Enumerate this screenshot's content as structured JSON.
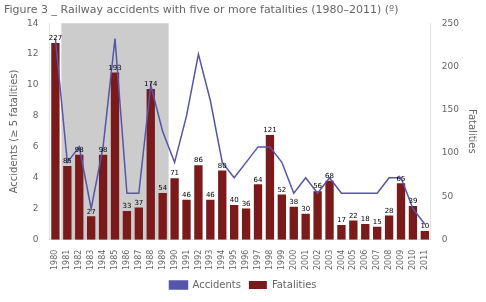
{
  "chart_data": {
    "type": "bar",
    "title": "Figure 3 _ Railway accidents with five or more fatalities (1980–2011) (º)",
    "categories": [
      "1980",
      "1981",
      "1982",
      "1983",
      "1984",
      "1985",
      "1986",
      "1987",
      "1988",
      "1989",
      "1990",
      "1991",
      "1992",
      "1993",
      "1994",
      "1995",
      "1996",
      "1997",
      "1998",
      "1999",
      "2000",
      "2001",
      "2002",
      "2003",
      "2004",
      "2005",
      "2006",
      "2007",
      "2008",
      "2009",
      "2010",
      "2011"
    ],
    "series": [
      {
        "name": "Fatalities",
        "type": "bar",
        "axis": "y2",
        "color": "#7b1a1a",
        "data_labels": true,
        "values": [
          227,
          85,
          98,
          27,
          98,
          193,
          33,
          37,
          174,
          54,
          71,
          46,
          86,
          46,
          80,
          40,
          36,
          64,
          121,
          52,
          38,
          30,
          56,
          68,
          17,
          22,
          18,
          15,
          28,
          65,
          39,
          10
        ]
      },
      {
        "name": "Accidents",
        "type": "line",
        "axis": "y",
        "color": "#5555aa",
        "marker": "none",
        "values": [
          13,
          5,
          6,
          2,
          6,
          13,
          3,
          3,
          10,
          7,
          5,
          8,
          12,
          9,
          5,
          4,
          5,
          6,
          6,
          5,
          3,
          4,
          3,
          4,
          3,
          3,
          3,
          3,
          4,
          4,
          2,
          1
        ]
      }
    ],
    "shaded_region": {
      "from": "1981",
      "to": "1989",
      "color": "#cccccc"
    },
    "y_label": "Accidents (≥ 5 fatalities)",
    "y2_label": "Fatalities",
    "ylim": [
      0,
      14
    ],
    "yticks": [
      0,
      2,
      4,
      6,
      8,
      10,
      12,
      14
    ],
    "y2lim": [
      0,
      250
    ],
    "y2ticks": [
      0,
      50,
      100,
      150,
      200,
      250
    ],
    "grid": false,
    "legend": "bottom"
  }
}
